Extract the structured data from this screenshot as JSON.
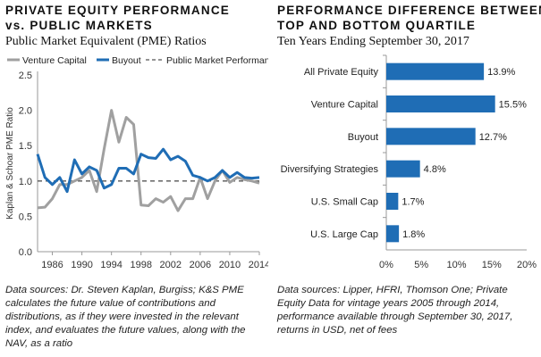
{
  "left": {
    "title_line1": "PRIVATE EQUITY PERFORMANCE",
    "title_line2": "vs. PUBLIC MARKETS",
    "subtitle": "Public Market Equivalent (PME) Ratios",
    "source": "Data sources: Dr. Steven Kaplan, Burgiss; K&S PME calculates the future value of contributions and distributions, as if they were invested in the relevant index, and evaluates the future values, along with the NAV, as a ratio"
  },
  "right": {
    "title_line1": "PERFORMANCE DIFFERENCE BETWEEN",
    "title_line2": "TOP AND BOTTOM QUARTILE",
    "subtitle": "Ten Years Ending September 30, 2017",
    "source": "Data sources: Lipper, HFRI, Thomson One; Private Equity Data for vintage years 2005 through 2014, performance available through September 30, 2017, returns in USD, net of fees"
  },
  "colors": {
    "venture": "#a0a0a0",
    "buyout": "#1f6db5",
    "public": "#555555",
    "bar": "#1f6db5",
    "axis": "#999999"
  },
  "chart_data": [
    {
      "type": "line",
      "ylabel": "Kaplan & Schoar PME Ratio",
      "xlabel": "",
      "ylim": [
        0,
        2.5
      ],
      "yticks": [
        "0.0",
        "0.5",
        "1.0",
        "1.5",
        "2.0",
        "2.5"
      ],
      "yticks_values": [
        0,
        0.5,
        1.0,
        1.5,
        2.0,
        2.5
      ],
      "xlim": [
        1984,
        2014
      ],
      "xticks": [
        "1986",
        "1990",
        "1994",
        "1998",
        "2002",
        "2006",
        "2010",
        "2014"
      ],
      "xticks_values": [
        1986,
        1990,
        1994,
        1998,
        2002,
        2006,
        2010,
        2014
      ],
      "legend_position": "top",
      "series": [
        {
          "name": "Venture Capital",
          "style": "solid",
          "x": [
            1984,
            1985,
            1986,
            1987,
            1988,
            1989,
            1990,
            1991,
            1992,
            1993,
            1994,
            1995,
            1996,
            1997,
            1998,
            1999,
            2000,
            2001,
            2002,
            2003,
            2004,
            2005,
            2006,
            2007,
            2008,
            2009,
            2010,
            2011,
            2012,
            2013,
            2014
          ],
          "values": [
            0.62,
            0.63,
            0.75,
            0.95,
            0.95,
            1.0,
            1.05,
            1.15,
            0.85,
            1.45,
            2.0,
            1.55,
            1.9,
            1.8,
            0.66,
            0.65,
            0.75,
            0.7,
            0.78,
            0.58,
            0.75,
            0.75,
            1.05,
            0.75,
            1.0,
            1.15,
            0.98,
            1.05,
            1.02,
            1.0,
            0.97
          ]
        },
        {
          "name": "Buyout",
          "style": "solid",
          "x": [
            1984,
            1985,
            1986,
            1987,
            1988,
            1989,
            1990,
            1991,
            1992,
            1993,
            1994,
            1995,
            1996,
            1997,
            1998,
            1999,
            2000,
            2001,
            2002,
            2003,
            2004,
            2005,
            2006,
            2007,
            2008,
            2009,
            2010,
            2011,
            2012,
            2013,
            2014
          ],
          "values": [
            1.38,
            1.05,
            0.95,
            1.05,
            0.85,
            1.3,
            1.1,
            1.2,
            1.15,
            0.9,
            0.95,
            1.18,
            1.18,
            1.1,
            1.38,
            1.33,
            1.32,
            1.45,
            1.3,
            1.35,
            1.28,
            1.08,
            1.05,
            1.0,
            1.05,
            1.15,
            1.05,
            1.12,
            1.05,
            1.04,
            1.05
          ]
        },
        {
          "name": "Public Market Performance",
          "style": "dashed",
          "x": [
            1984,
            2014
          ],
          "values": [
            1.0,
            1.0
          ]
        }
      ]
    },
    {
      "type": "bar",
      "orientation": "horizontal",
      "categories": [
        "All Private Equity",
        "Venture Capital",
        "Buyout",
        "Diversifying Strategies",
        "U.S. Small Cap",
        "U.S. Large Cap"
      ],
      "values": [
        13.9,
        15.5,
        12.7,
        4.8,
        1.7,
        1.8
      ],
      "value_labels": [
        "13.9%",
        "15.5%",
        "12.7%",
        "4.8%",
        "1.7%",
        "1.8%"
      ],
      "xlim": [
        0,
        20
      ],
      "xticks": [
        "0%",
        "5%",
        "10%",
        "15%",
        "20%"
      ],
      "xticks_values": [
        0,
        5,
        10,
        15,
        20
      ],
      "xlabel": "",
      "ylabel": ""
    }
  ]
}
